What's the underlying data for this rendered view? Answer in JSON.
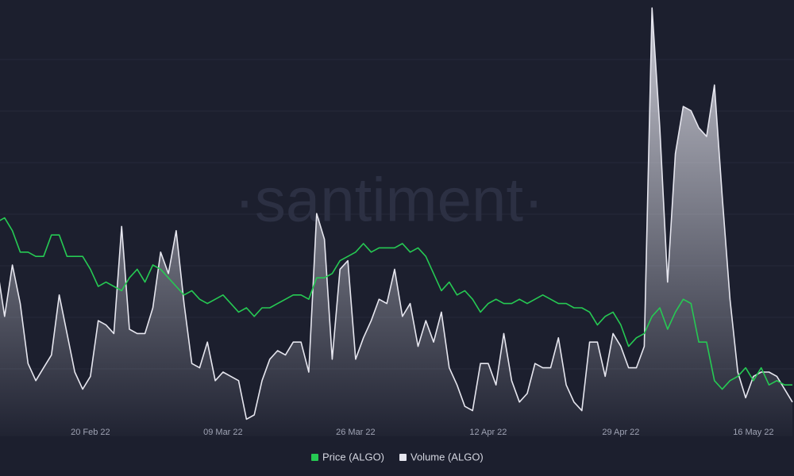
{
  "chart_data": {
    "type": "line",
    "watermark": "·santiment·",
    "categories": [
      null,
      null,
      null,
      null,
      null,
      null,
      null,
      null,
      null,
      null,
      null,
      null,
      "20 Feb 22",
      null,
      null,
      null,
      null,
      null,
      null,
      null,
      null,
      null,
      null,
      null,
      null,
      null,
      null,
      null,
      null,
      "09 Mar 22",
      null,
      null,
      null,
      null,
      null,
      null,
      null,
      null,
      null,
      null,
      null,
      null,
      null,
      null,
      null,
      null,
      "26 Mar 22",
      null,
      null,
      null,
      null,
      null,
      null,
      null,
      null,
      null,
      null,
      null,
      null,
      null,
      null,
      null,
      null,
      "12 Apr 22",
      null,
      null,
      null,
      null,
      null,
      null,
      null,
      null,
      null,
      null,
      null,
      null,
      null,
      null,
      null,
      null,
      "29 Apr 22",
      null,
      null,
      null,
      null,
      null,
      null,
      null,
      null,
      null,
      null,
      null,
      null,
      null,
      null,
      null,
      null,
      "16 May 22",
      null,
      null,
      null,
      null,
      null
    ],
    "ylim": [
      0,
      100
    ],
    "y2lim": [
      0,
      100
    ],
    "series": [
      {
        "name": "Price (ALGO)",
        "color": "#26c953",
        "values": [
          50,
          51,
          48,
          43,
          43,
          42,
          42,
          47,
          47,
          42,
          42,
          42,
          39,
          35,
          36,
          35,
          34,
          37,
          39,
          36,
          40,
          39,
          37,
          35,
          33,
          34,
          32,
          31,
          32,
          33,
          31,
          29,
          30,
          28,
          30,
          30,
          31,
          32,
          33,
          33,
          32,
          37,
          37,
          38,
          41,
          42,
          43,
          45,
          43,
          44,
          44,
          44,
          45,
          43,
          44,
          42,
          38,
          34,
          36,
          33,
          34,
          32,
          29,
          31,
          32,
          31,
          31,
          32,
          31,
          32,
          33,
          32,
          31,
          31,
          30,
          30,
          29,
          26,
          28,
          29,
          26,
          21,
          23,
          24,
          28,
          30,
          25,
          29,
          32,
          31,
          22,
          22,
          13,
          11,
          13,
          14,
          16,
          13,
          16,
          12,
          13,
          12,
          12
        ]
      },
      {
        "name": "Volume (ALGO)",
        "color": "#e6e6ef",
        "axis": "y2",
        "values": [
          40,
          28,
          40,
          31,
          17,
          13,
          16,
          19,
          33,
          24,
          15,
          11,
          14,
          27,
          26,
          24,
          49,
          25,
          24,
          24,
          30,
          43,
          38,
          48,
          31,
          17,
          16,
          22,
          13,
          15,
          14,
          13,
          4,
          5,
          13,
          18,
          20,
          19,
          22,
          22,
          15,
          52,
          46,
          18,
          39,
          41,
          18,
          23,
          27,
          32,
          31,
          39,
          28,
          31,
          21,
          27,
          22,
          29,
          16,
          12,
          7,
          6,
          17,
          17,
          12,
          24,
          13,
          8,
          10,
          17,
          16,
          16,
          23,
          12,
          8,
          6,
          22,
          22,
          14,
          24,
          21,
          16,
          16,
          21,
          100,
          72,
          36,
          66,
          77,
          76,
          72,
          70,
          82,
          56,
          32,
          15,
          9,
          14,
          15,
          15,
          14,
          11,
          8
        ]
      }
    ]
  }
}
